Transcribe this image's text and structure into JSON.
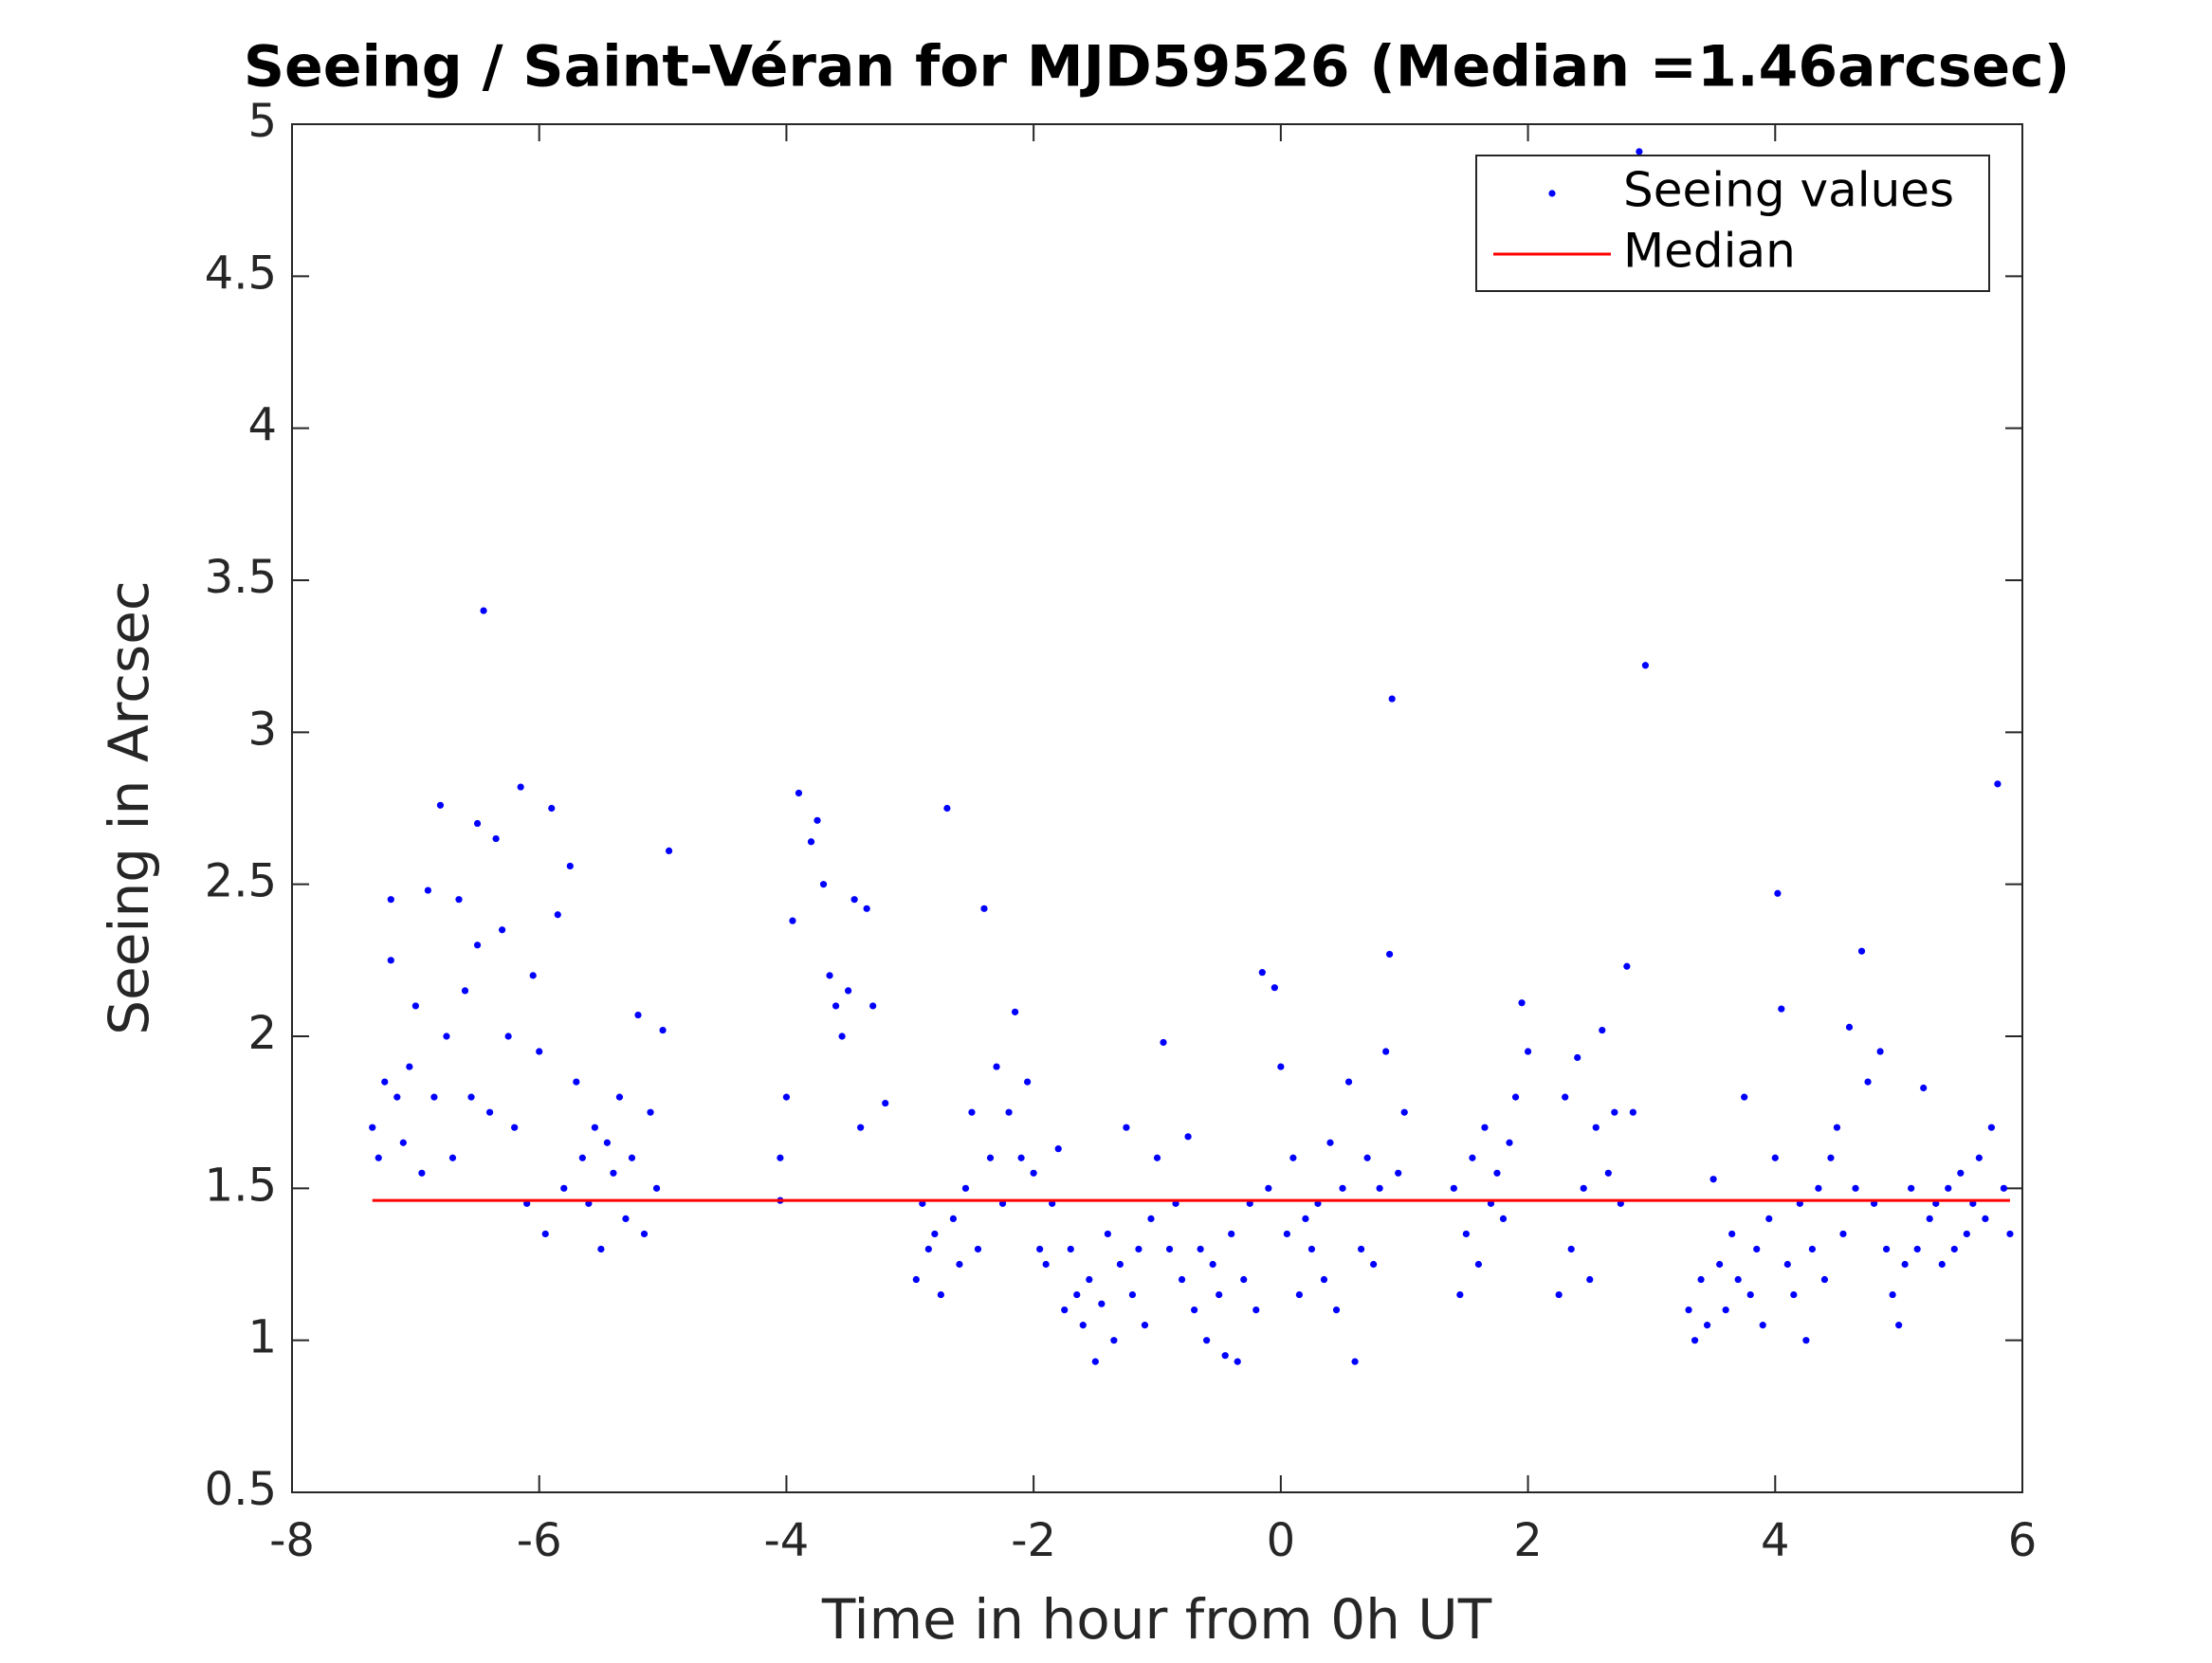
{
  "chart_data": {
    "type": "scatter",
    "title": "Seeing / Saint-Véran for MJD59526 (Median =1.46arcsec)",
    "x_label": "Time in hour from 0h UT",
    "y_label": "Seeing in Arcsec",
    "xlim": [
      -8,
      6
    ],
    "xticks": [
      -8,
      -6,
      -4,
      -2,
      0,
      2,
      4,
      6
    ],
    "ylim": [
      0.5,
      5
    ],
    "yticks": [
      0.5,
      1,
      1.5,
      2,
      2.5,
      3,
      3.5,
      4,
      4.5,
      5
    ],
    "grid": false,
    "legend": "northeast",
    "series": [
      {
        "name": "Seeing values",
        "color": "#0000ff",
        "mode": "markers",
        "x": [
          -7.35,
          -7.3,
          -7.25,
          -7.2,
          -7.2,
          -7.15,
          -7.1,
          -7.05,
          -7.0,
          -6.95,
          -6.9,
          -6.85,
          -6.8,
          -6.75,
          -6.7,
          -6.65,
          -6.6,
          -6.55,
          -6.5,
          -6.5,
          -6.45,
          -6.4,
          -6.35,
          -6.3,
          -6.25,
          -6.2,
          -6.15,
          -6.1,
          -6.05,
          -6.0,
          -5.95,
          -5.9,
          -5.85,
          -5.8,
          -5.75,
          -5.7,
          -5.65,
          -5.6,
          -5.55,
          -5.5,
          -5.45,
          -5.4,
          -5.35,
          -5.3,
          -5.25,
          -5.2,
          -5.15,
          -5.1,
          -5.05,
          -5.0,
          -4.95,
          -4.05,
          -4.05,
          -4.0,
          -3.95,
          -3.9,
          -3.8,
          -3.75,
          -3.7,
          -3.65,
          -3.6,
          -3.55,
          -3.5,
          -3.45,
          -3.4,
          -3.35,
          -3.3,
          -3.2,
          -2.95,
          -2.9,
          -2.85,
          -2.8,
          -2.75,
          -2.7,
          -2.65,
          -2.6,
          -2.55,
          -2.5,
          -2.45,
          -2.4,
          -2.35,
          -2.3,
          -2.25,
          -2.2,
          -2.15,
          -2.1,
          -2.05,
          -2.0,
          -1.95,
          -1.9,
          -1.85,
          -1.8,
          -1.75,
          -1.7,
          -1.65,
          -1.6,
          -1.55,
          -1.5,
          -1.45,
          -1.4,
          -1.35,
          -1.3,
          -1.25,
          -1.2,
          -1.15,
          -1.1,
          -1.05,
          -1.0,
          -0.95,
          -0.9,
          -0.85,
          -0.8,
          -0.75,
          -0.7,
          -0.65,
          -0.6,
          -0.55,
          -0.5,
          -0.45,
          -0.4,
          -0.35,
          -0.3,
          -0.25,
          -0.2,
          -0.15,
          -0.1,
          -0.05,
          0,
          0.05,
          0.1,
          0.15,
          0.2,
          0.25,
          0.3,
          0.35,
          0.4,
          0.45,
          0.5,
          0.55,
          0.6,
          0.65,
          0.7,
          0.75,
          0.8,
          0.85,
          0.88,
          0.9,
          0.95,
          1.0,
          1.4,
          1.45,
          1.5,
          1.55,
          1.6,
          1.65,
          1.7,
          1.75,
          1.8,
          1.85,
          1.9,
          1.95,
          2.0,
          2.25,
          2.3,
          2.35,
          2.4,
          2.45,
          2.5,
          2.55,
          2.6,
          2.65,
          2.7,
          2.75,
          2.8,
          2.85,
          2.9,
          2.95,
          3.3,
          3.35,
          3.4,
          3.45,
          3.5,
          3.55,
          3.6,
          3.65,
          3.7,
          3.75,
          3.8,
          3.85,
          3.9,
          3.95,
          4.0,
          4.02,
          4.05,
          4.1,
          4.15,
          4.2,
          4.25,
          4.3,
          4.35,
          4.4,
          4.45,
          4.5,
          4.55,
          4.6,
          4.65,
          4.7,
          4.75,
          4.8,
          4.85,
          4.9,
          4.95,
          5.0,
          5.05,
          5.1,
          5.15,
          5.2,
          5.25,
          5.3,
          5.35,
          5.4,
          5.45,
          5.5,
          5.55,
          5.6,
          5.65,
          5.7,
          5.75,
          5.8,
          5.85,
          5.9
        ],
        "values": [
          1.7,
          1.6,
          1.85,
          2.45,
          2.25,
          1.8,
          1.65,
          1.9,
          2.1,
          1.55,
          2.48,
          1.8,
          2.76,
          2.0,
          1.6,
          2.45,
          2.15,
          1.8,
          2.7,
          2.3,
          3.4,
          1.75,
          2.65,
          2.35,
          2.0,
          1.7,
          2.82,
          1.45,
          2.2,
          1.95,
          1.35,
          2.75,
          2.4,
          1.5,
          2.56,
          1.85,
          1.6,
          1.45,
          1.7,
          1.3,
          1.65,
          1.55,
          1.8,
          1.4,
          1.6,
          2.07,
          1.35,
          1.75,
          1.5,
          2.02,
          2.61,
          1.46,
          1.6,
          1.8,
          2.38,
          2.8,
          2.64,
          2.71,
          2.5,
          2.2,
          2.1,
          2.0,
          2.15,
          2.45,
          1.7,
          2.42,
          2.1,
          1.78,
          1.2,
          1.45,
          1.3,
          1.35,
          1.15,
          2.75,
          1.4,
          1.25,
          1.5,
          1.75,
          1.3,
          2.42,
          1.6,
          1.9,
          1.45,
          1.75,
          2.08,
          1.6,
          1.85,
          1.55,
          1.3,
          1.25,
          1.45,
          1.63,
          1.1,
          1.3,
          1.15,
          1.05,
          1.2,
          0.93,
          1.12,
          1.35,
          1.0,
          1.25,
          1.7,
          1.15,
          1.3,
          1.05,
          1.4,
          1.6,
          1.98,
          1.3,
          1.45,
          1.2,
          1.67,
          1.1,
          1.3,
          1.0,
          1.25,
          1.15,
          0.95,
          1.35,
          0.93,
          1.2,
          1.45,
          1.1,
          2.21,
          1.5,
          2.16,
          1.9,
          1.35,
          1.6,
          1.15,
          1.4,
          1.3,
          1.45,
          1.2,
          1.65,
          1.1,
          1.5,
          1.85,
          0.93,
          1.3,
          1.6,
          1.25,
          1.5,
          1.95,
          2.27,
          3.11,
          1.55,
          1.75,
          1.5,
          1.15,
          1.35,
          1.6,
          1.25,
          1.7,
          1.45,
          1.55,
          1.4,
          1.65,
          1.8,
          2.11,
          1.95,
          1.15,
          1.8,
          1.3,
          1.93,
          1.5,
          1.2,
          1.7,
          2.02,
          1.55,
          1.75,
          1.45,
          2.23,
          1.75,
          4.91,
          3.22,
          1.1,
          1.0,
          1.2,
          1.05,
          1.53,
          1.25,
          1.1,
          1.35,
          1.2,
          1.8,
          1.15,
          1.3,
          1.05,
          1.4,
          1.6,
          2.47,
          2.09,
          1.25,
          1.15,
          1.45,
          1.0,
          1.3,
          1.5,
          1.2,
          1.6,
          1.7,
          1.35,
          2.03,
          1.5,
          2.28,
          1.85,
          1.45,
          1.95,
          1.3,
          1.15,
          1.05,
          1.25,
          1.5,
          1.3,
          1.83,
          1.4,
          1.45,
          1.25,
          1.5,
          1.3,
          1.55,
          1.35,
          1.45,
          1.6,
          1.4,
          1.7,
          2.83,
          1.5,
          1.35
        ]
      },
      {
        "name": "Median",
        "color": "#ff0000",
        "mode": "line",
        "x": [
          -7.35,
          5.9
        ],
        "values": [
          1.46,
          1.46
        ]
      }
    ]
  }
}
